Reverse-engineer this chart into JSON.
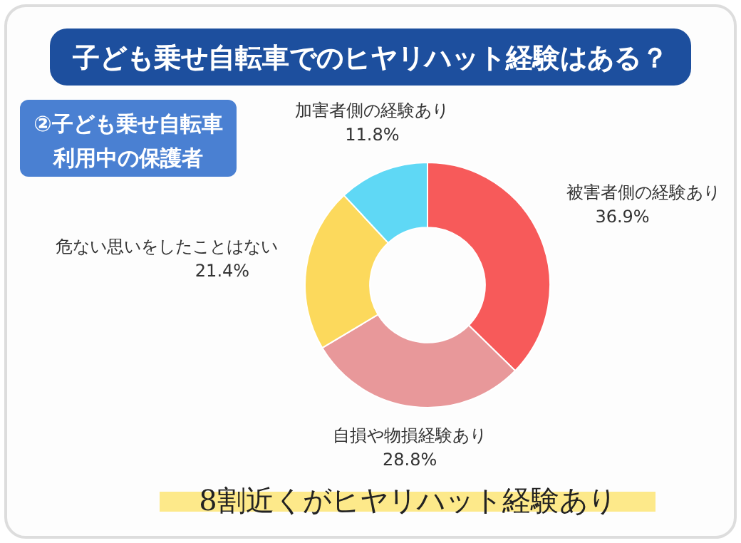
{
  "chart_data": {
    "type": "donut",
    "title": "子ども乗せ自転車でのヒヤリハット経験はある？",
    "subtitle": "②子ども乗せ自転車利用中の保護者",
    "categories": [
      "被害者側の経験あり",
      "自損や物損経験あり",
      "危ない思いをしたことはない",
      "加害者側の経験あり"
    ],
    "values": [
      36.9,
      28.8,
      21.4,
      11.8
    ],
    "colors": [
      "#f75a5a",
      "#e8989a",
      "#fcd95c",
      "#5fd8f5"
    ],
    "value_labels": [
      "36.9%",
      "28.8%",
      "21.4%",
      "11.8%"
    ],
    "annotations": [
      "8割近くがヒヤリハット経験あり"
    ]
  }
}
